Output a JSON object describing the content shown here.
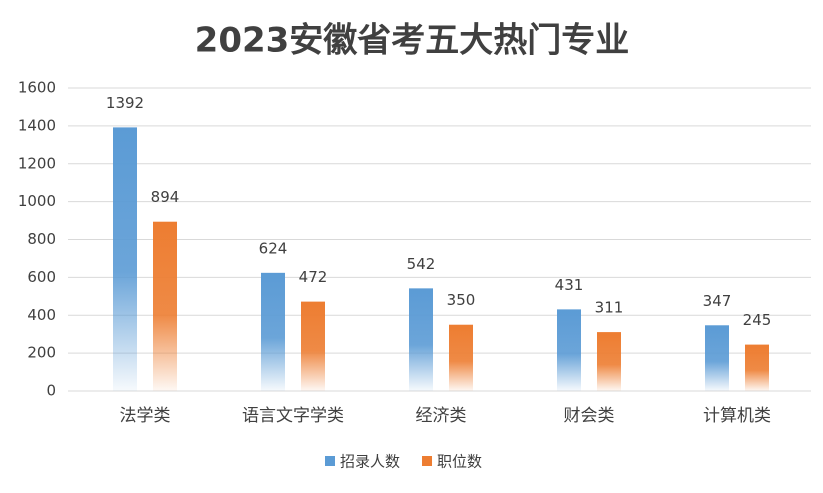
{
  "chart_data": {
    "type": "bar",
    "title": "2023安徽省考五大热门专业",
    "categories": [
      "法学类",
      "语言文字学类",
      "经济类",
      "财会类",
      "计算机类"
    ],
    "series": [
      {
        "name": "招录人数",
        "color": "#5b9bd5",
        "values": [
          1392,
          624,
          542,
          431,
          347
        ]
      },
      {
        "name": "职位数",
        "color": "#ed7d31",
        "values": [
          894,
          472,
          350,
          311,
          245
        ]
      }
    ],
    "ylim": [
      0,
      1600
    ],
    "yticks": [
      0,
      200,
      400,
      600,
      800,
      1000,
      1200,
      1400,
      1600
    ],
    "grid": true,
    "legend": "bottom"
  }
}
